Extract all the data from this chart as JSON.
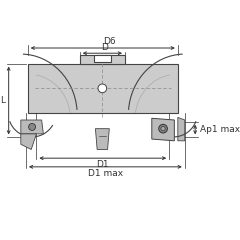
{
  "bg_color": "#ffffff",
  "body_fill": "#cccccc",
  "body_edge": "#444444",
  "dim_color": "#333333",
  "insert_fill": "#bbbbbb",
  "insert_edge": "#333333",
  "dark_fill": "#888888",
  "labels": {
    "D6": "D6",
    "D": "D",
    "L": "L",
    "D1": "D1",
    "D1max": "D1 max",
    "Ap1max": "Ap1 max"
  },
  "figsize": [
    2.4,
    2.4
  ],
  "dpi": 100
}
